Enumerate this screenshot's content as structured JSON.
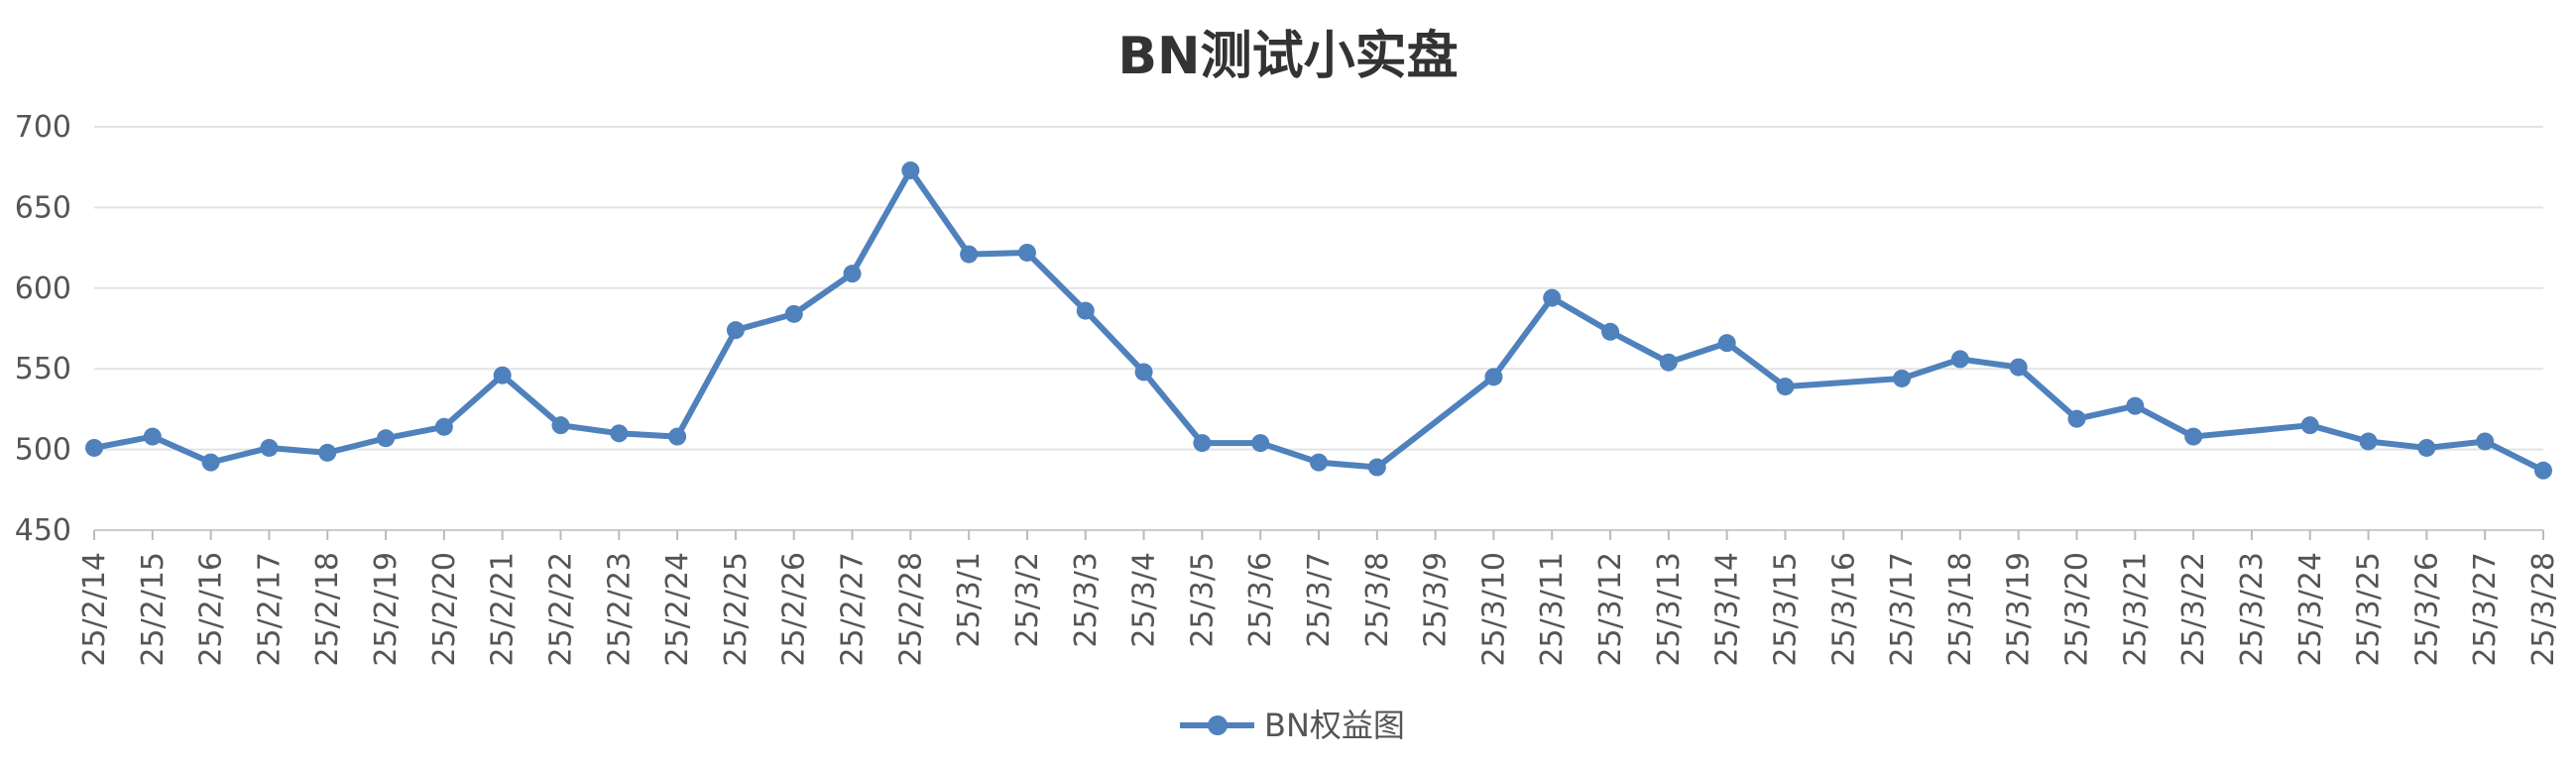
{
  "chart_data": {
    "type": "line",
    "title": "BN测试小实盘",
    "xlabel": "",
    "ylabel": "",
    "ylim": [
      450,
      700
    ],
    "yticks": [
      450,
      500,
      550,
      600,
      650,
      700
    ],
    "grid": true,
    "legend_position": "bottom",
    "x": [
      "25/2/14",
      "25/2/15",
      "25/2/16",
      "25/2/17",
      "25/2/18",
      "25/2/19",
      "25/2/20",
      "25/2/21",
      "25/2/22",
      "25/2/23",
      "25/2/24",
      "25/2/25",
      "25/2/26",
      "25/2/27",
      "25/2/28",
      "25/3/1",
      "25/3/2",
      "25/3/3",
      "25/3/4",
      "25/3/5",
      "25/3/6",
      "25/3/7",
      "25/3/8",
      "25/3/9",
      "25/3/10",
      "25/3/11",
      "25/3/12",
      "25/3/13",
      "25/3/14",
      "25/3/15",
      "25/3/16",
      "25/3/17",
      "25/3/18",
      "25/3/19",
      "25/3/20",
      "25/3/21",
      "25/3/22",
      "25/3/23",
      "25/3/24",
      "25/3/25",
      "25/3/26",
      "25/3/27",
      "25/3/28"
    ],
    "series": [
      {
        "name": "BN权益图",
        "color": "#4f81bd",
        "values": [
          501,
          508,
          492,
          501,
          498,
          507,
          514,
          546,
          515,
          510,
          508,
          574,
          584,
          609,
          673,
          621,
          622,
          586,
          548,
          504,
          504,
          492,
          489,
          null,
          545,
          594,
          573,
          554,
          566,
          539,
          null,
          544,
          556,
          551,
          519,
          527,
          508,
          null,
          515,
          505,
          501,
          505,
          487
        ]
      }
    ]
  }
}
